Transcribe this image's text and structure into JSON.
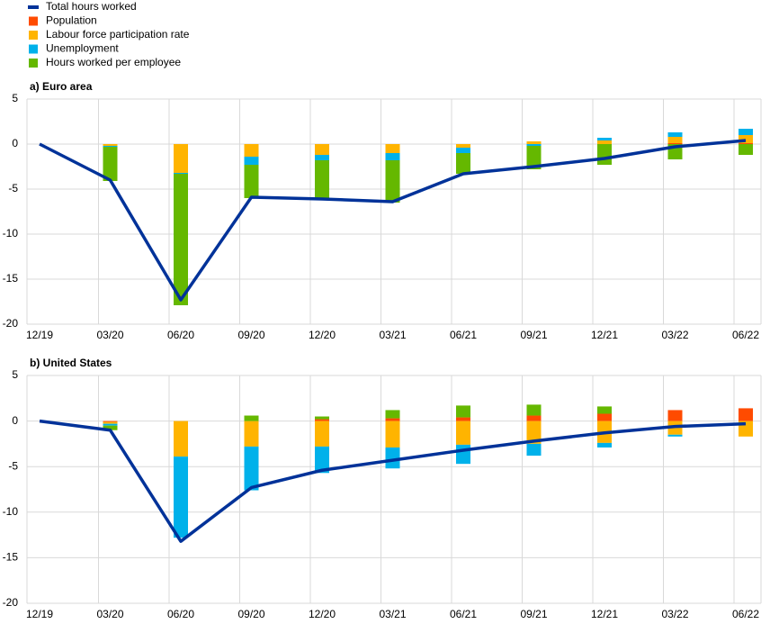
{
  "chart_data": [
    {
      "type": "bar",
      "title": "a) Euro area",
      "categories": [
        "12/19",
        "03/20",
        "06/20",
        "09/20",
        "12/20",
        "03/21",
        "06/21",
        "09/21",
        "12/21",
        "03/22",
        "06/22"
      ],
      "ylim": [
        -20,
        5
      ],
      "yticks": [
        5,
        0,
        -5,
        -10,
        -15,
        -20
      ],
      "grid": true,
      "series": [
        {
          "name": "Total hours worked",
          "type": "line",
          "color": "#003299",
          "values": [
            0,
            -4,
            -17.3,
            -5.9,
            -6.1,
            -6.4,
            -3.3,
            -2.5,
            -1.6,
            -0.3,
            0.4
          ]
        },
        {
          "name": "Population",
          "color": "#ff4b00",
          "values": [
            0,
            0,
            0,
            0,
            0,
            0,
            0,
            0,
            0,
            0.1,
            0.1
          ]
        },
        {
          "name": "Labour force participation rate",
          "color": "#ffb400",
          "values": [
            0,
            -0.2,
            -3.2,
            -1.4,
            -1.2,
            -1.0,
            -0.4,
            0.3,
            0.4,
            0.7,
            0.9
          ]
        },
        {
          "name": "Unemployment",
          "color": "#00b1ea",
          "values": [
            0,
            -0.1,
            -0.1,
            -0.9,
            -0.6,
            -0.8,
            -0.6,
            -0.2,
            0.3,
            0.5,
            0.7
          ]
        },
        {
          "name": "Hours worked per employee",
          "color": "#65b800",
          "values": [
            0,
            -3.8,
            -14.6,
            -3.7,
            -4.3,
            -4.7,
            -2.3,
            -2.6,
            -2.3,
            -1.7,
            -1.2
          ]
        }
      ]
    },
    {
      "type": "bar",
      "title": "b) United States",
      "categories": [
        "12/19",
        "03/20",
        "06/20",
        "09/20",
        "12/20",
        "03/21",
        "06/21",
        "09/21",
        "12/21",
        "03/22",
        "06/22"
      ],
      "ylim": [
        -20,
        5
      ],
      "yticks": [
        5,
        0,
        -5,
        -10,
        -15,
        -20
      ],
      "grid": true,
      "series": [
        {
          "type": "line",
          "color": "#003299",
          "values": [
            0,
            -1.0,
            -13.2,
            -7.3,
            -5.4,
            -4.3,
            -3.2,
            -2.2,
            -1.3,
            -0.6,
            -0.3
          ]
        },
        {
          "color": "#ff4b00",
          "values": [
            0,
            -0.1,
            0,
            0,
            0.2,
            0.3,
            0.4,
            0.6,
            0.8,
            1.2,
            1.4
          ]
        },
        {
          "color": "#ffb400",
          "values": [
            0,
            -0.2,
            -3.9,
            -2.8,
            -2.8,
            -2.9,
            -2.6,
            -2.5,
            -2.4,
            -1.5,
            -1.7
          ]
        },
        {
          "color": "#00b1ea",
          "values": [
            0,
            -0.2,
            -8.9,
            -4.8,
            -2.9,
            -2.3,
            -2.1,
            -1.3,
            -0.5,
            -0.2,
            0
          ]
        },
        {
          "color": "#65b800",
          "values": [
            0,
            -0.5,
            0,
            0.6,
            0.3,
            0.9,
            1.3,
            1.2,
            0.8,
            0,
            0
          ]
        }
      ]
    }
  ]
}
